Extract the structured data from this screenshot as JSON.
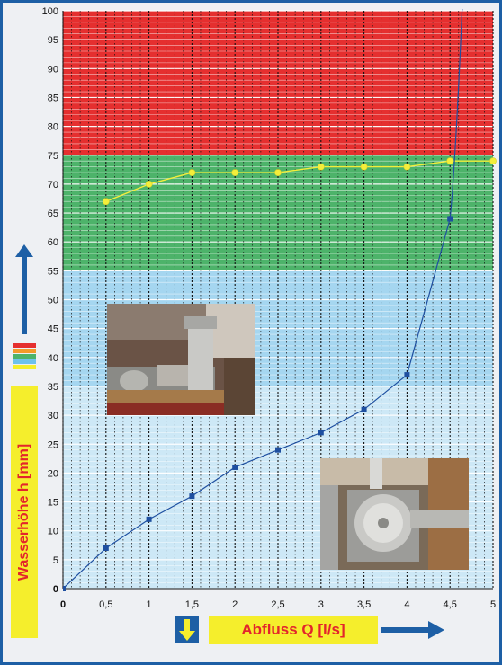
{
  "chart_data": {
    "type": "line",
    "xlabel": "Abfluss Q [l/s]",
    "ylabel": "Wasserhöhe h [mm]",
    "xlim": [
      0,
      5
    ],
    "ylim": [
      0,
      100
    ],
    "x_ticks": [
      "0",
      "0,5",
      "1",
      "1,5",
      "2",
      "2,5",
      "3",
      "3,5",
      "4",
      "4,5",
      "5"
    ],
    "y_ticks": [
      "0",
      "5",
      "10",
      "15",
      "20",
      "25",
      "30",
      "35",
      "40",
      "45",
      "50",
      "55",
      "60",
      "65",
      "70",
      "75",
      "80",
      "85",
      "90",
      "95",
      "100"
    ],
    "bands": [
      {
        "from": 0,
        "to": 35,
        "color": "#cde8f6"
      },
      {
        "from": 35,
        "to": 55,
        "color": "#a5d6f0"
      },
      {
        "from": 55,
        "to": 75,
        "color": "#4db36a"
      },
      {
        "from": 75,
        "to": 100,
        "color": "#e52f2f"
      }
    ],
    "series": [
      {
        "color": "#1e4fa0",
        "marker": "square",
        "x": [
          0,
          0.5,
          1,
          1.5,
          2,
          2.5,
          3,
          3.5,
          4,
          4.5
        ],
        "y": [
          0,
          7,
          12,
          16,
          21,
          24,
          27,
          31,
          37,
          64
        ]
      },
      {
        "color": "#f3ee3b",
        "marker": "circle",
        "x": [
          0.5,
          1,
          1.5,
          2,
          2.5,
          3,
          3.5,
          4,
          4.5,
          5
        ],
        "y": [
          67,
          70,
          72,
          72,
          72,
          73,
          73,
          73,
          74,
          74
        ]
      }
    ],
    "grid": true
  },
  "colors": {
    "frame": "#1d5fa5",
    "label_bg": "#f5ee2c",
    "label_text": "#e3252b",
    "arrow": "#1d5fa5"
  },
  "icons": {
    "y_axis_arrow": "arrow-up-icon",
    "x_axis_arrow": "arrow-right-icon",
    "down_marker": "arrow-down-icon"
  }
}
